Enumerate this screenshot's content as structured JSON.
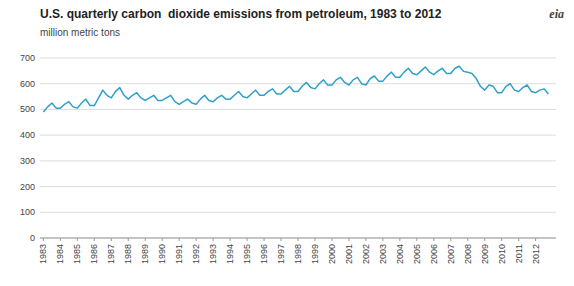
{
  "chart_data": {
    "type": "line",
    "title": "U.S. quarterly carbon  dioxide emissions from petroleum, 1983 to 2012",
    "ylabel": "million metric tons",
    "annotations": [
      "eia"
    ],
    "color": "#2fa0c8",
    "grid": true,
    "x": [
      1983,
      1983.25,
      1983.5,
      1983.75,
      1984,
      1984.25,
      1984.5,
      1984.75,
      1985,
      1985.25,
      1985.5,
      1985.75,
      1986,
      1986.25,
      1986.5,
      1986.75,
      1987,
      1987.25,
      1987.5,
      1987.75,
      1988,
      1988.25,
      1988.5,
      1988.75,
      1989,
      1989.25,
      1989.5,
      1989.75,
      1990,
      1990.25,
      1990.5,
      1990.75,
      1991,
      1991.25,
      1991.5,
      1991.75,
      1992,
      1992.25,
      1992.5,
      1992.75,
      1993,
      1993.25,
      1993.5,
      1993.75,
      1994,
      1994.25,
      1994.5,
      1994.75,
      1995,
      1995.25,
      1995.5,
      1995.75,
      1996,
      1996.25,
      1996.5,
      1996.75,
      1997,
      1997.25,
      1997.5,
      1997.75,
      1998,
      1998.25,
      1998.5,
      1998.75,
      1999,
      1999.25,
      1999.5,
      1999.75,
      2000,
      2000.25,
      2000.5,
      2000.75,
      2001,
      2001.25,
      2001.5,
      2001.75,
      2002,
      2002.25,
      2002.5,
      2002.75,
      2003,
      2003.25,
      2003.5,
      2003.75,
      2004,
      2004.25,
      2004.5,
      2004.75,
      2005,
      2005.25,
      2005.5,
      2005.75,
      2006,
      2006.25,
      2006.5,
      2006.75,
      2007,
      2007.25,
      2007.5,
      2007.75,
      2008,
      2008.25,
      2008.5,
      2008.75,
      2009,
      2009.25,
      2009.5,
      2009.75,
      2010,
      2010.25,
      2010.5,
      2010.75,
      2011,
      2011.25,
      2011.5,
      2011.75,
      2012,
      2012.25,
      2012.5,
      2012.75
    ],
    "values": [
      490,
      510,
      525,
      505,
      505,
      520,
      530,
      510,
      505,
      525,
      540,
      515,
      515,
      545,
      575,
      555,
      545,
      570,
      585,
      555,
      540,
      555,
      565,
      545,
      535,
      545,
      555,
      535,
      535,
      545,
      555,
      530,
      520,
      530,
      540,
      525,
      520,
      540,
      555,
      535,
      530,
      545,
      555,
      540,
      540,
      555,
      570,
      550,
      545,
      560,
      575,
      555,
      555,
      570,
      580,
      560,
      560,
      575,
      590,
      570,
      570,
      590,
      605,
      585,
      580,
      600,
      615,
      595,
      595,
      615,
      625,
      605,
      595,
      615,
      625,
      600,
      595,
      620,
      630,
      610,
      610,
      630,
      645,
      625,
      625,
      645,
      660,
      640,
      635,
      650,
      665,
      645,
      635,
      650,
      660,
      640,
      640,
      660,
      668,
      648,
      645,
      640,
      620,
      590,
      575,
      595,
      590,
      565,
      565,
      590,
      600,
      575,
      570,
      585,
      595,
      570,
      565,
      575,
      580,
      560
    ],
    "xlim": [
      1982.8,
      2013.2
    ],
    "xticks": [
      1983,
      1984,
      1985,
      1986,
      1987,
      1988,
      1989,
      1990,
      1991,
      1992,
      1993,
      1994,
      1995,
      1996,
      1997,
      1998,
      1999,
      2000,
      2001,
      2002,
      2003,
      2004,
      2005,
      2006,
      2007,
      2008,
      2009,
      2010,
      2011,
      2012
    ],
    "ylim": [
      0,
      700
    ],
    "yticks": [
      0,
      100,
      200,
      300,
      400,
      500,
      600,
      700
    ]
  }
}
